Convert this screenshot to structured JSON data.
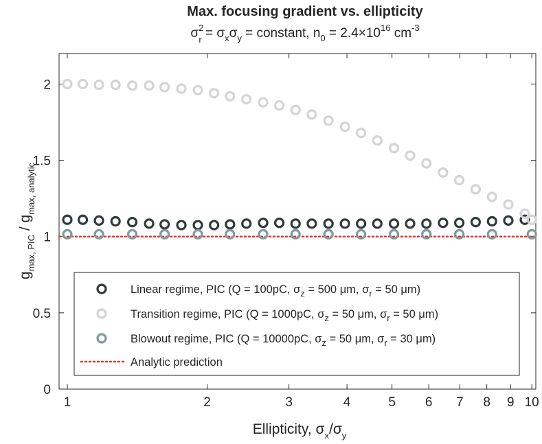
{
  "chart_data": {
    "type": "scatter",
    "title": "Max. focusing gradient vs. ellipticity",
    "subtitle": {
      "lhs_sigma": "σ",
      "lhs_sub": "r",
      "lhs_sup": "2",
      "eq1": " = ",
      "prod_a": "σ",
      "prod_a_sub": "x",
      "prod_b": "σ",
      "prod_b_sub": "y",
      "eq2": " = constant, n",
      "n_sub": "0",
      "eq3": " = 2.4",
      "times": "×",
      "base": "10",
      "exp": "16",
      "unit": " cm",
      "unit_exp": "-3"
    },
    "xlabel": {
      "text": "Ellipticity,  ",
      "sx": "σ",
      "sx_sub": "x",
      "slash": "/",
      "sy": "σ",
      "sy_sub": "y"
    },
    "ylabel": {
      "g1": "g",
      "g1_sub": "max, PIC",
      "slash": " / g",
      "g2_sub": "max, analytic"
    },
    "xscale": "log",
    "xlim": [
      0.96,
      10.2
    ],
    "ylim": [
      0,
      2.2
    ],
    "xticks": [
      1,
      2,
      3,
      4,
      5,
      6,
      7,
      8,
      9,
      10
    ],
    "xtick_labels": [
      "1",
      "2",
      "3",
      "4",
      "5",
      "6",
      "7",
      "8",
      "9",
      "10"
    ],
    "yticks": [
      0,
      0.5,
      1,
      1.5,
      2
    ],
    "ytick_labels": [
      "0",
      "0.5",
      "1",
      "1.5",
      "2"
    ],
    "grid": false,
    "legend_position": "lower-center",
    "series": [
      {
        "name": "Linear regime",
        "label_prefix": "Linear regime, PIC (Q = 100pC, ",
        "label_sz": "σ",
        "label_sz_sub": "z",
        "label_mid": " = 500 ",
        "label_mu1": "μ",
        "label_m1": "m, ",
        "label_sr": "σ",
        "label_sr_sub": "r",
        "label_tail": " = 50 ",
        "label_mu2": "μ",
        "label_end": "m)",
        "marker": "circle",
        "color": "#2f3b3d",
        "x": [
          1.0,
          1.08,
          1.17,
          1.27,
          1.38,
          1.5,
          1.62,
          1.76,
          1.91,
          2.07,
          2.24,
          2.43,
          2.64,
          2.86,
          3.1,
          3.36,
          3.65,
          3.96,
          4.29,
          4.65,
          5.05,
          5.47,
          5.93,
          6.44,
          6.98,
          7.57,
          8.21,
          8.9,
          9.66
        ],
        "y": [
          1.11,
          1.11,
          1.105,
          1.1,
          1.095,
          1.085,
          1.08,
          1.075,
          1.075,
          1.075,
          1.08,
          1.085,
          1.09,
          1.09,
          1.085,
          1.085,
          1.085,
          1.085,
          1.085,
          1.085,
          1.085,
          1.085,
          1.085,
          1.09,
          1.09,
          1.095,
          1.1,
          1.105,
          1.11
        ]
      },
      {
        "name": "Transition regime",
        "label_prefix": "Transition regime, PIC (Q = 1000pC, ",
        "label_sz": "σ",
        "label_sz_sub": "z",
        "label_mid": " = 50 ",
        "label_mu1": "μ",
        "label_m1": "m, ",
        "label_sr": "σ",
        "label_sr_sub": "r",
        "label_tail": " = 50 ",
        "label_mu2": "μ",
        "label_end": "m)",
        "marker": "circle",
        "color": "#d3d5d5",
        "x": [
          1.0,
          1.08,
          1.17,
          1.27,
          1.38,
          1.5,
          1.62,
          1.76,
          1.91,
          2.07,
          2.24,
          2.43,
          2.64,
          2.86,
          3.1,
          3.36,
          3.65,
          3.96,
          4.29,
          4.65,
          5.05,
          5.47,
          5.93,
          6.44,
          6.98,
          7.57,
          8.21,
          8.9,
          9.66,
          10.0
        ],
        "y": [
          2.0,
          2.0,
          1.995,
          1.995,
          1.99,
          1.99,
          1.98,
          1.97,
          1.96,
          1.94,
          1.92,
          1.9,
          1.88,
          1.86,
          1.83,
          1.8,
          1.76,
          1.72,
          1.68,
          1.63,
          1.58,
          1.53,
          1.48,
          1.42,
          1.37,
          1.31,
          1.26,
          1.21,
          1.15,
          1.11
        ]
      },
      {
        "name": "Blowout regime",
        "label_prefix": "Blowout regime, PIC (Q = 10000pC, ",
        "label_sz": "σ",
        "label_sz_sub": "z",
        "label_mid": " = 50 ",
        "label_mu1": "μ",
        "label_m1": "m, ",
        "label_sr": "σ",
        "label_sr_sub": "r",
        "label_tail": " = 30 ",
        "label_mu2": "μ",
        "label_end": "m)",
        "marker": "circle",
        "color": "#7f9c9a",
        "x": [
          1.0,
          1.17,
          1.38,
          1.62,
          1.91,
          2.24,
          2.64,
          3.1,
          3.65,
          4.29,
          5.05,
          5.93,
          6.98,
          8.21,
          10.0
        ],
        "y": [
          1.015,
          1.015,
          1.015,
          1.015,
          1.015,
          1.015,
          1.015,
          1.015,
          1.015,
          1.015,
          1.015,
          1.015,
          1.015,
          1.015,
          1.015
        ]
      }
    ],
    "reference_line": {
      "name": "Analytic prediction",
      "y": 1.0,
      "style": "dotted",
      "color": "#e8312a"
    }
  }
}
